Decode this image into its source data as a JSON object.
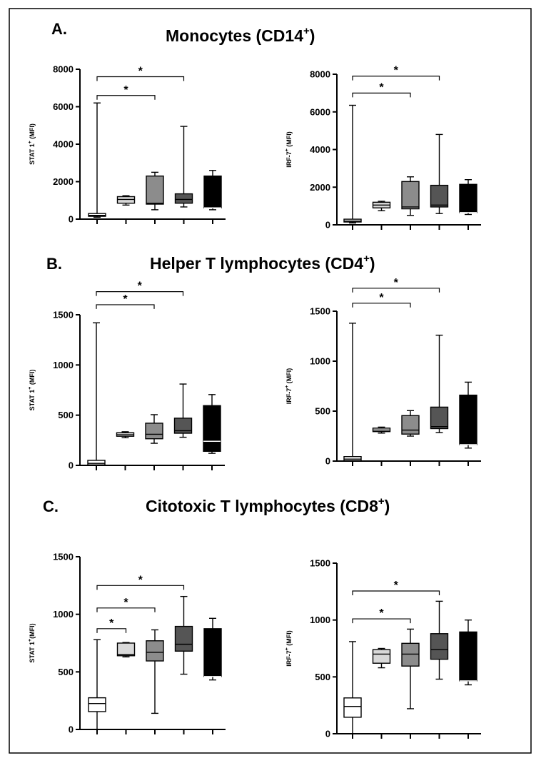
{
  "figure": {
    "frame": true
  },
  "sections": [
    {
      "letter": "A.",
      "title": "Monocytes (CD14",
      "title_sup": "+",
      "title_end": ")"
    },
    {
      "letter": "B.",
      "title": "Helper T lymphocytes (CD4",
      "title_sup": "+",
      "title_end": ")"
    },
    {
      "letter": "C.",
      "title": "Citotoxic T lymphocytes (CD8",
      "title_sup": "+",
      "title_end": ")"
    }
  ],
  "colors": {
    "box_fills": [
      "#ffffff",
      "#d9d9d9",
      "#8c8c8c",
      "#555555",
      "#000000"
    ],
    "line": "#000000",
    "box_dark_median": "#ffffff"
  },
  "chart_data": [
    {
      "type": "box",
      "panel": "A",
      "position": "left",
      "ylabel": "STAT 1",
      "ylabel_sup": "+",
      "ylabel_unit": " (MFI)",
      "ylim": [
        0,
        8000
      ],
      "yticks": [
        0,
        2000,
        4000,
        6000,
        8000
      ],
      "groups": 5,
      "boxes": [
        {
          "min": 100,
          "q1": 150,
          "median": 200,
          "q3": 300,
          "max": 6200
        },
        {
          "min": 750,
          "q1": 850,
          "median": 1050,
          "q3": 1200,
          "max": 1250
        },
        {
          "min": 500,
          "q1": 800,
          "median": 850,
          "q3": 2300,
          "max": 2500
        },
        {
          "min": 650,
          "q1": 850,
          "median": 1050,
          "q3": 1350,
          "max": 4950
        },
        {
          "min": 500,
          "q1": 600,
          "median": 600,
          "q3": 2300,
          "max": 2600
        }
      ],
      "significance": [
        {
          "from": 1,
          "to": 3,
          "label": "*",
          "y": 6600
        },
        {
          "from": 1,
          "to": 4,
          "label": "*",
          "y": 7600
        }
      ]
    },
    {
      "type": "box",
      "panel": "A",
      "position": "right",
      "ylabel": "IRF-7",
      "ylabel_sup": "+",
      "ylabel_unit": " (MFI)",
      "ylim": [
        0,
        8000
      ],
      "yticks": [
        0,
        2000,
        4000,
        6000,
        8000
      ],
      "groups": 5,
      "boxes": [
        {
          "min": 100,
          "q1": 150,
          "median": 200,
          "q3": 300,
          "max": 6350
        },
        {
          "min": 750,
          "q1": 900,
          "median": 1050,
          "q3": 1200,
          "max": 1250
        },
        {
          "min": 500,
          "q1": 850,
          "median": 950,
          "q3": 2300,
          "max": 2550
        },
        {
          "min": 600,
          "q1": 950,
          "median": 1050,
          "q3": 2100,
          "max": 4800
        },
        {
          "min": 550,
          "q1": 650,
          "median": 650,
          "q3": 2150,
          "max": 2400
        }
      ],
      "significance": [
        {
          "from": 1,
          "to": 3,
          "label": "*",
          "y": 7000
        },
        {
          "from": 1,
          "to": 4,
          "label": "*",
          "y": 7900
        }
      ]
    },
    {
      "type": "box",
      "panel": "B",
      "position": "left",
      "ylabel": "STAT 1",
      "ylabel_sup": "+",
      "ylabel_unit": " (MFI)",
      "ylim": [
        0,
        1500
      ],
      "yticks": [
        0,
        500,
        1000,
        1500
      ],
      "groups": 5,
      "boxes": [
        {
          "min": 0,
          "q1": 5,
          "median": 20,
          "q3": 50,
          "max": 1420
        },
        {
          "min": 275,
          "q1": 290,
          "median": 305,
          "q3": 325,
          "max": 335
        },
        {
          "min": 220,
          "q1": 265,
          "median": 310,
          "q3": 420,
          "max": 505
        },
        {
          "min": 280,
          "q1": 320,
          "median": 345,
          "q3": 470,
          "max": 810
        },
        {
          "min": 120,
          "q1": 140,
          "median": 240,
          "q3": 595,
          "max": 705
        }
      ],
      "significance": [
        {
          "from": 1,
          "to": 3,
          "label": "*",
          "y": 1600
        },
        {
          "from": 1,
          "to": 4,
          "label": "*",
          "y": 1730
        }
      ]
    },
    {
      "type": "box",
      "panel": "B",
      "position": "right",
      "ylabel": "IRF-7",
      "ylabel_sup": "+",
      "ylabel_unit": " (MFI)",
      "ylim": [
        0,
        1500
      ],
      "yticks": [
        0,
        500,
        1000,
        1500
      ],
      "groups": 5,
      "boxes": [
        {
          "min": 0,
          "q1": 5,
          "median": 20,
          "q3": 45,
          "max": 1380
        },
        {
          "min": 280,
          "q1": 295,
          "median": 310,
          "q3": 330,
          "max": 340
        },
        {
          "min": 250,
          "q1": 270,
          "median": 310,
          "q3": 455,
          "max": 505
        },
        {
          "min": 285,
          "q1": 325,
          "median": 345,
          "q3": 540,
          "max": 1260
        },
        {
          "min": 130,
          "q1": 165,
          "median": 165,
          "q3": 660,
          "max": 790
        }
      ],
      "significance": [
        {
          "from": 1,
          "to": 3,
          "label": "*",
          "y": 1580
        },
        {
          "from": 1,
          "to": 4,
          "label": "*",
          "y": 1730
        }
      ]
    },
    {
      "type": "box",
      "panel": "C",
      "position": "left",
      "ylabel": "STAT 1",
      "ylabel_sup": "+",
      "ylabel_unit": "(MFI)",
      "ylim": [
        0,
        1500
      ],
      "yticks": [
        0,
        500,
        1000,
        1500
      ],
      "groups": 5,
      "boxes": [
        {
          "min": 0,
          "q1": 155,
          "median": 225,
          "q3": 275,
          "max": 780
        },
        {
          "min": 630,
          "q1": 640,
          "median": 650,
          "q3": 750,
          "max": 755
        },
        {
          "min": 140,
          "q1": 595,
          "median": 670,
          "q3": 770,
          "max": 865
        },
        {
          "min": 480,
          "q1": 680,
          "median": 740,
          "q3": 895,
          "max": 1155
        },
        {
          "min": 430,
          "q1": 460,
          "median": 460,
          "q3": 875,
          "max": 965
        }
      ],
      "significance": [
        {
          "from": 1,
          "to": 2,
          "label": "*",
          "y": 875
        },
        {
          "from": 1,
          "to": 3,
          "label": "*",
          "y": 1055
        },
        {
          "from": 1,
          "to": 4,
          "label": "*",
          "y": 1250
        }
      ]
    },
    {
      "type": "box",
      "panel": "C",
      "position": "right",
      "ylabel": "IRF-7",
      "ylabel_sup": "+",
      "ylabel_unit": " (MFI)",
      "ylim": [
        0,
        1500
      ],
      "yticks": [
        0,
        500,
        1000,
        1500
      ],
      "groups": 5,
      "boxes": [
        {
          "min": 0,
          "q1": 145,
          "median": 240,
          "q3": 315,
          "max": 810
        },
        {
          "min": 580,
          "q1": 620,
          "median": 700,
          "q3": 740,
          "max": 750
        },
        {
          "min": 220,
          "q1": 595,
          "median": 700,
          "q3": 795,
          "max": 920
        },
        {
          "min": 480,
          "q1": 655,
          "median": 740,
          "q3": 880,
          "max": 1165
        },
        {
          "min": 430,
          "q1": 465,
          "median": 465,
          "q3": 895,
          "max": 1000
        }
      ],
      "significance": [
        {
          "from": 1,
          "to": 3,
          "label": "*",
          "y": 1010
        },
        {
          "from": 1,
          "to": 4,
          "label": "*",
          "y": 1255
        }
      ]
    }
  ]
}
